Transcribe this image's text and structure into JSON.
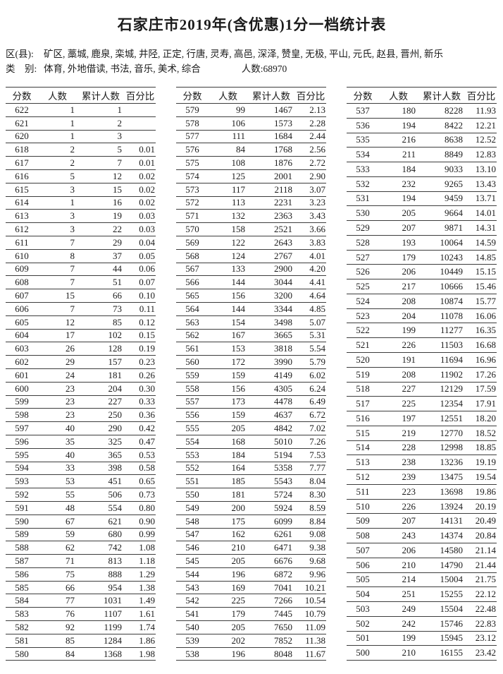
{
  "page": {
    "title": "石家庄市2019年(含优惠)1分一档统计表",
    "district_label": "区(县):",
    "district_list": "矿区, 藁城, 鹿泉, 栾城, 井陉, 正定, 行唐, 灵寿, 高邑, 深泽, 赞皇, 无极, 平山, 元氏, 赵县, 晋州, 新乐",
    "category_label": "类　别:",
    "category_list": "体育, 外地借读, 书法, 音乐, 美术, 综合",
    "total_count_label": "人数:68970"
  },
  "columns": [
    "分数",
    "人数",
    "累计人数",
    "百分比"
  ],
  "tables": [
    {
      "rows": [
        [
          "622",
          "1",
          "1",
          ""
        ],
        [
          "621",
          "1",
          "2",
          ""
        ],
        [
          "620",
          "1",
          "3",
          ""
        ],
        [
          "618",
          "2",
          "5",
          "0.01"
        ],
        [
          "617",
          "2",
          "7",
          "0.01"
        ],
        [
          "616",
          "5",
          "12",
          "0.02"
        ],
        [
          "615",
          "3",
          "15",
          "0.02"
        ],
        [
          "614",
          "1",
          "16",
          "0.02"
        ],
        [
          "613",
          "3",
          "19",
          "0.03"
        ],
        [
          "612",
          "3",
          "22",
          "0.03"
        ],
        [
          "611",
          "7",
          "29",
          "0.04"
        ],
        [
          "610",
          "8",
          "37",
          "0.05"
        ],
        [
          "609",
          "7",
          "44",
          "0.06"
        ],
        [
          "608",
          "7",
          "51",
          "0.07"
        ],
        [
          "607",
          "15",
          "66",
          "0.10"
        ],
        [
          "606",
          "7",
          "73",
          "0.11"
        ],
        [
          "605",
          "12",
          "85",
          "0.12"
        ],
        [
          "604",
          "17",
          "102",
          "0.15"
        ],
        [
          "603",
          "26",
          "128",
          "0.19"
        ],
        [
          "602",
          "29",
          "157",
          "0.23"
        ],
        [
          "601",
          "24",
          "181",
          "0.26"
        ],
        [
          "600",
          "23",
          "204",
          "0.30"
        ],
        [
          "599",
          "23",
          "227",
          "0.33"
        ],
        [
          "598",
          "23",
          "250",
          "0.36"
        ],
        [
          "597",
          "40",
          "290",
          "0.42"
        ],
        [
          "596",
          "35",
          "325",
          "0.47"
        ],
        [
          "595",
          "40",
          "365",
          "0.53"
        ],
        [
          "594",
          "33",
          "398",
          "0.58"
        ],
        [
          "593",
          "53",
          "451",
          "0.65"
        ],
        [
          "592",
          "55",
          "506",
          "0.73"
        ],
        [
          "591",
          "48",
          "554",
          "0.80"
        ],
        [
          "590",
          "67",
          "621",
          "0.90"
        ],
        [
          "589",
          "59",
          "680",
          "0.99"
        ],
        [
          "588",
          "62",
          "742",
          "1.08"
        ],
        [
          "587",
          "71",
          "813",
          "1.18"
        ],
        [
          "586",
          "75",
          "888",
          "1.29"
        ],
        [
          "585",
          "66",
          "954",
          "1.38"
        ],
        [
          "584",
          "77",
          "1031",
          "1.49"
        ],
        [
          "583",
          "76",
          "1107",
          "1.61"
        ],
        [
          "582",
          "92",
          "1199",
          "1.74"
        ],
        [
          "581",
          "85",
          "1284",
          "1.86"
        ],
        [
          "580",
          "84",
          "1368",
          "1.98"
        ]
      ]
    },
    {
      "rows": [
        [
          "579",
          "99",
          "1467",
          "2.13"
        ],
        [
          "578",
          "106",
          "1573",
          "2.28"
        ],
        [
          "577",
          "111",
          "1684",
          "2.44"
        ],
        [
          "576",
          "84",
          "1768",
          "2.56"
        ],
        [
          "575",
          "108",
          "1876",
          "2.72"
        ],
        [
          "574",
          "125",
          "2001",
          "2.90"
        ],
        [
          "573",
          "117",
          "2118",
          "3.07"
        ],
        [
          "572",
          "113",
          "2231",
          "3.23"
        ],
        [
          "571",
          "132",
          "2363",
          "3.43"
        ],
        [
          "570",
          "158",
          "2521",
          "3.66"
        ],
        [
          "569",
          "122",
          "2643",
          "3.83"
        ],
        [
          "568",
          "124",
          "2767",
          "4.01"
        ],
        [
          "567",
          "133",
          "2900",
          "4.20"
        ],
        [
          "566",
          "144",
          "3044",
          "4.41"
        ],
        [
          "565",
          "156",
          "3200",
          "4.64"
        ],
        [
          "564",
          "144",
          "3344",
          "4.85"
        ],
        [
          "563",
          "154",
          "3498",
          "5.07"
        ],
        [
          "562",
          "167",
          "3665",
          "5.31"
        ],
        [
          "561",
          "153",
          "3818",
          "5.54"
        ],
        [
          "560",
          "172",
          "3990",
          "5.79"
        ],
        [
          "559",
          "159",
          "4149",
          "6.02"
        ],
        [
          "558",
          "156",
          "4305",
          "6.24"
        ],
        [
          "557",
          "173",
          "4478",
          "6.49"
        ],
        [
          "556",
          "159",
          "4637",
          "6.72"
        ],
        [
          "555",
          "205",
          "4842",
          "7.02"
        ],
        [
          "554",
          "168",
          "5010",
          "7.26"
        ],
        [
          "553",
          "184",
          "5194",
          "7.53"
        ],
        [
          "552",
          "164",
          "5358",
          "7.77"
        ],
        [
          "551",
          "185",
          "5543",
          "8.04"
        ],
        [
          "550",
          "181",
          "5724",
          "8.30"
        ],
        [
          "549",
          "200",
          "5924",
          "8.59"
        ],
        [
          "548",
          "175",
          "6099",
          "8.84"
        ],
        [
          "547",
          "162",
          "6261",
          "9.08"
        ],
        [
          "546",
          "210",
          "6471",
          "9.38"
        ],
        [
          "545",
          "205",
          "6676",
          "9.68"
        ],
        [
          "544",
          "196",
          "6872",
          "9.96"
        ],
        [
          "543",
          "169",
          "7041",
          "10.21"
        ],
        [
          "542",
          "225",
          "7266",
          "10.54"
        ],
        [
          "541",
          "179",
          "7445",
          "10.79"
        ],
        [
          "540",
          "205",
          "7650",
          "11.09"
        ],
        [
          "539",
          "202",
          "7852",
          "11.38"
        ],
        [
          "538",
          "196",
          "8048",
          "11.67"
        ]
      ]
    },
    {
      "rows": [
        [
          "537",
          "180",
          "8228",
          "11.93"
        ],
        [
          "536",
          "194",
          "8422",
          "12.21"
        ],
        [
          "535",
          "216",
          "8638",
          "12.52"
        ],
        [
          "534",
          "211",
          "8849",
          "12.83"
        ],
        [
          "533",
          "184",
          "9033",
          "13.10"
        ],
        [
          "532",
          "232",
          "9265",
          "13.43"
        ],
        [
          "531",
          "194",
          "9459",
          "13.71"
        ],
        [
          "530",
          "205",
          "9664",
          "14.01"
        ],
        [
          "529",
          "207",
          "9871",
          "14.31"
        ],
        [
          "528",
          "193",
          "10064",
          "14.59"
        ],
        [
          "527",
          "179",
          "10243",
          "14.85"
        ],
        [
          "526",
          "206",
          "10449",
          "15.15"
        ],
        [
          "525",
          "217",
          "10666",
          "15.46"
        ],
        [
          "524",
          "208",
          "10874",
          "15.77"
        ],
        [
          "523",
          "204",
          "11078",
          "16.06"
        ],
        [
          "522",
          "199",
          "11277",
          "16.35"
        ],
        [
          "521",
          "226",
          "11503",
          "16.68"
        ],
        [
          "520",
          "191",
          "11694",
          "16.96"
        ],
        [
          "519",
          "208",
          "11902",
          "17.26"
        ],
        [
          "518",
          "227",
          "12129",
          "17.59"
        ],
        [
          "517",
          "225",
          "12354",
          "17.91"
        ],
        [
          "516",
          "197",
          "12551",
          "18.20"
        ],
        [
          "515",
          "219",
          "12770",
          "18.52"
        ],
        [
          "514",
          "228",
          "12998",
          "18.85"
        ],
        [
          "513",
          "238",
          "13236",
          "19.19"
        ],
        [
          "512",
          "239",
          "13475",
          "19.54"
        ],
        [
          "511",
          "223",
          "13698",
          "19.86"
        ],
        [
          "510",
          "226",
          "13924",
          "20.19"
        ],
        [
          "509",
          "207",
          "14131",
          "20.49"
        ],
        [
          "508",
          "243",
          "14374",
          "20.84"
        ],
        [
          "507",
          "206",
          "14580",
          "21.14"
        ],
        [
          "506",
          "210",
          "14790",
          "21.44"
        ],
        [
          "505",
          "214",
          "15004",
          "21.75"
        ],
        [
          "504",
          "251",
          "15255",
          "22.12"
        ],
        [
          "503",
          "249",
          "15504",
          "22.48"
        ],
        [
          "502",
          "242",
          "15746",
          "22.83"
        ],
        [
          "501",
          "199",
          "15945",
          "23.12"
        ],
        [
          "500",
          "210",
          "16155",
          "23.42"
        ]
      ]
    }
  ]
}
